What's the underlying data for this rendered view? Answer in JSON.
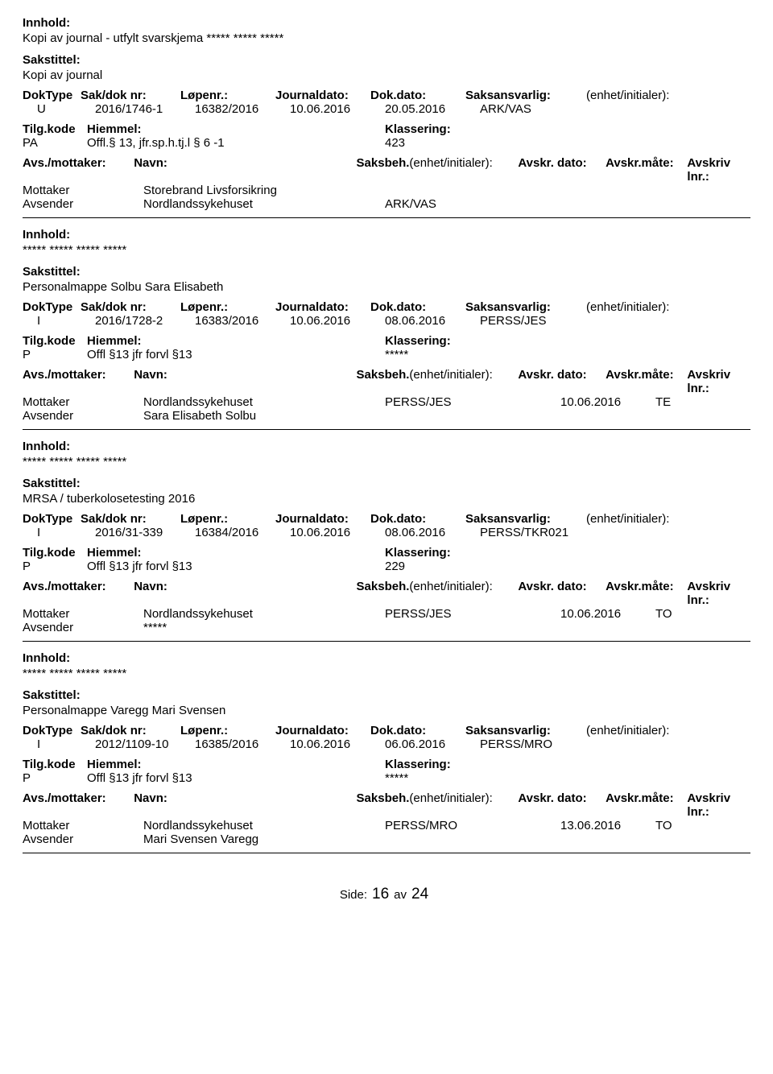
{
  "labels": {
    "innhold": "Innhold:",
    "sakstittel": "Sakstittel:",
    "doktype": "DokType",
    "sakdok": "Sak/dok nr:",
    "lopenr": "Løpenr.:",
    "jdato": "Journaldato:",
    "ddato": "Dok.dato:",
    "saksansv": "Saksansvarlig:",
    "enhet": "(enhet/initialer):",
    "tilgkode": "Tilg.kode",
    "hjemmel": "Hiemmel:",
    "klassering": "Klassering:",
    "avsmot": "Avs./mottaker:",
    "navn": "Navn:",
    "saksbeh": "Saksbeh.",
    "saksbeh_enhet": "(enhet/initialer):",
    "avskrdato": "Avskr. dato:",
    "avskrmate": "Avskr.måte:",
    "avskrlnr": "Avskriv lnr.:",
    "mottaker": "Mottaker",
    "avsender": "Avsender"
  },
  "records": [
    {
      "innhold": "Kopi av journal - utfylt svarskjema ***** ***** *****",
      "sakstittel": "Kopi av journal",
      "doktype": "U",
      "sakdok": "2016/1746-1",
      "lopenr": "16382/2016",
      "jdato": "10.06.2016",
      "ddato": "20.05.2016",
      "saksansv": "ARK/VAS",
      "tilgkode": "PA",
      "hjemmel": "Offl.§ 13, jfr.sp.h.tj.l § 6 -1",
      "klassering": "423",
      "parties": [
        {
          "role": "Mottaker",
          "navn": "Storebrand Livsforsikring",
          "saksbeh": "",
          "avskrdato": "",
          "avskrmate": ""
        },
        {
          "role": "Avsender",
          "navn": "Nordlandssykehuset",
          "saksbeh": "ARK/VAS",
          "avskrdato": "",
          "avskrmate": ""
        }
      ]
    },
    {
      "innhold": "***** ***** ***** *****",
      "sakstittel": "Personalmappe Solbu Sara Elisabeth",
      "doktype": "I",
      "sakdok": "2016/1728-2",
      "lopenr": "16383/2016",
      "jdato": "10.06.2016",
      "ddato": "08.06.2016",
      "saksansv": "PERSS/JES",
      "tilgkode": "P",
      "hjemmel": "Offl §13 jfr forvl §13",
      "klassering": "*****",
      "parties": [
        {
          "role": "Mottaker",
          "navn": "Nordlandssykehuset",
          "saksbeh": "PERSS/JES",
          "avskrdato": "10.06.2016",
          "avskrmate": "TE"
        },
        {
          "role": "Avsender",
          "navn": "Sara Elisabeth Solbu",
          "saksbeh": "",
          "avskrdato": "",
          "avskrmate": ""
        }
      ]
    },
    {
      "innhold": "***** ***** ***** *****",
      "sakstittel": "MRSA / tuberkolosetesting 2016",
      "doktype": "I",
      "sakdok": "2016/31-339",
      "lopenr": "16384/2016",
      "jdato": "10.06.2016",
      "ddato": "08.06.2016",
      "saksansv": "PERSS/TKR021",
      "tilgkode": "P",
      "hjemmel": "Offl §13 jfr forvl §13",
      "klassering": "229",
      "parties": [
        {
          "role": "Mottaker",
          "navn": "Nordlandssykehuset",
          "saksbeh": "PERSS/JES",
          "avskrdato": "10.06.2016",
          "avskrmate": "TO"
        },
        {
          "role": "Avsender",
          "navn": "*****",
          "saksbeh": "",
          "avskrdato": "",
          "avskrmate": ""
        }
      ]
    },
    {
      "innhold": "***** ***** ***** *****",
      "sakstittel": "Personalmappe Varegg Mari Svensen",
      "doktype": "I",
      "sakdok": "2012/1109-10",
      "lopenr": "16385/2016",
      "jdato": "10.06.2016",
      "ddato": "06.06.2016",
      "saksansv": "PERSS/MRO",
      "tilgkode": "P",
      "hjemmel": "Offl §13 jfr forvl §13",
      "klassering": "*****",
      "parties": [
        {
          "role": "Mottaker",
          "navn": "Nordlandssykehuset",
          "saksbeh": "PERSS/MRO",
          "avskrdato": "13.06.2016",
          "avskrmate": "TO"
        },
        {
          "role": "Avsender",
          "navn": "Mari Svensen Varegg",
          "saksbeh": "",
          "avskrdato": "",
          "avskrmate": ""
        }
      ]
    }
  ],
  "footer": {
    "side": "Side:",
    "page": "16",
    "av": "av",
    "total": "24"
  }
}
